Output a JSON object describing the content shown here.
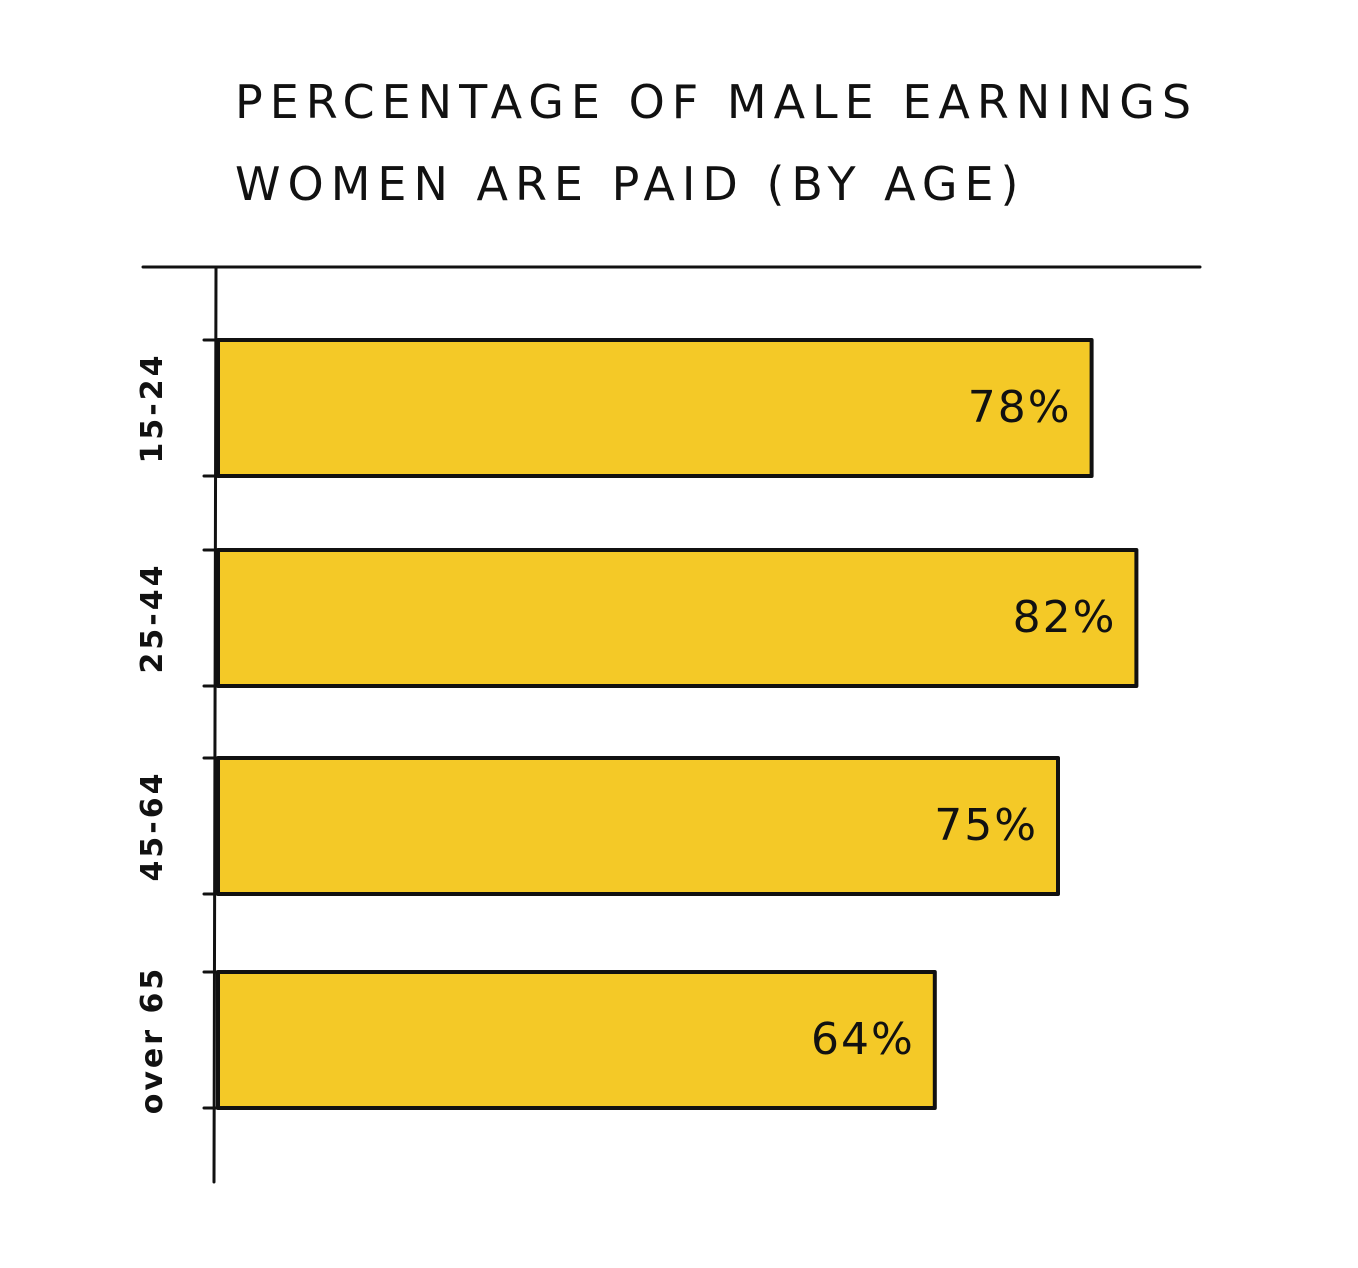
{
  "colors": {
    "bar_fill": "#F4C927",
    "ink": "#111111",
    "background": "#FFFFFF"
  },
  "chart_data": {
    "type": "bar",
    "orientation": "horizontal",
    "title": "PERCENTAGE OF MALE EARNINGS WOMEN ARE PAID (BY AGE)",
    "title_lines": [
      "PERCENTAGE OF MALE EARNINGS",
      "WOMEN ARE PAID (BY AGE)"
    ],
    "categories": [
      "15-24",
      "25-44",
      "45-64",
      "over 65"
    ],
    "values": [
      78,
      82,
      75,
      64
    ],
    "data_labels": [
      "78%",
      "82%",
      "75%",
      "64%"
    ],
    "unit": "%",
    "xlim": [
      0,
      100
    ],
    "xlabel": "",
    "ylabel": "",
    "grid": false,
    "legend": "none"
  }
}
